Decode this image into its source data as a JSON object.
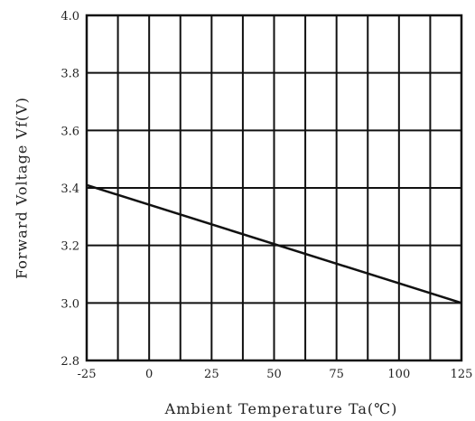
{
  "chart_data": {
    "type": "line",
    "title": "",
    "xlabel": "Ambient Temperature Ta(℃)",
    "ylabel": "Forward Voltage Vf(V)",
    "xlim": [
      -25,
      125
    ],
    "ylim": [
      2.8,
      4.0
    ],
    "x_ticks": [
      -25,
      0,
      25,
      50,
      75,
      100,
      125
    ],
    "x_tick_labels": [
      "-25",
      "0",
      "25",
      "50",
      "75",
      "100",
      "125"
    ],
    "y_ticks": [
      2.8,
      3.0,
      3.2,
      3.4,
      3.6,
      3.8,
      4.0
    ],
    "y_tick_labels": [
      "2.8",
      "3.0",
      "3.2",
      "3.4",
      "3.6",
      "3.8",
      "4.0"
    ],
    "x_grid_step": 12.5,
    "grid": true,
    "legend": "none",
    "series": [
      {
        "x": [
          -25,
          125
        ],
        "y": [
          3.41,
          3.0
        ]
      }
    ]
  }
}
